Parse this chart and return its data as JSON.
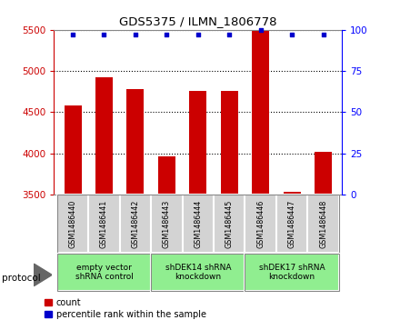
{
  "title": "GDS5375 / ILMN_1806778",
  "samples": [
    "GSM1486440",
    "GSM1486441",
    "GSM1486442",
    "GSM1486443",
    "GSM1486444",
    "GSM1486445",
    "GSM1486446",
    "GSM1486447",
    "GSM1486448"
  ],
  "counts": [
    4580,
    4920,
    4780,
    3960,
    4760,
    4760,
    5490,
    3530,
    4020
  ],
  "percentile_ranks": [
    97,
    97,
    97,
    97,
    97,
    97,
    100,
    97,
    97
  ],
  "groups": [
    {
      "label": "empty vector\nshRNA control",
      "start": 0,
      "end": 2,
      "color": "#90EE90"
    },
    {
      "label": "shDEK14 shRNA\nknockdown",
      "start": 3,
      "end": 5,
      "color": "#90EE90"
    },
    {
      "label": "shDEK17 shRNA\nknockdown",
      "start": 6,
      "end": 8,
      "color": "#90EE90"
    }
  ],
  "ylim_left": [
    3500,
    5500
  ],
  "ylim_right": [
    0,
    100
  ],
  "yticks_left": [
    3500,
    4000,
    4500,
    5000,
    5500
  ],
  "yticks_right": [
    0,
    25,
    50,
    75,
    100
  ],
  "bar_color": "#CC0000",
  "dot_color": "#0000CC",
  "bar_width": 0.55,
  "bg_sample_box": "#d3d3d3",
  "legend_count_label": "count",
  "legend_pct_label": "percentile rank within the sample",
  "protocol_label": "protocol"
}
